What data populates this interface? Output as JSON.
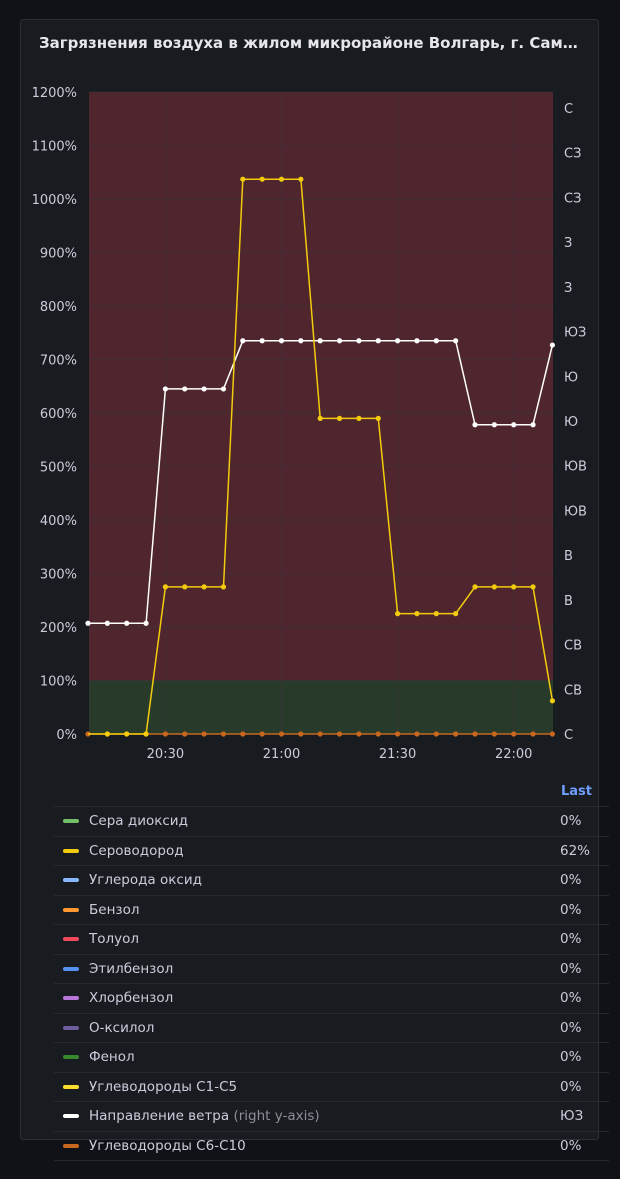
{
  "panel": {
    "title": "Загрязнения воздуха в жилом микрорайоне Волгарь, г. Самар...",
    "legend_header": "Last"
  },
  "colors": {
    "background": "#111217",
    "panel": "#181b1f",
    "threshold_red": "#4f262d",
    "threshold_green": "#283a2a",
    "grid": "#3a3540"
  },
  "chart_data": {
    "type": "line",
    "title": "Загрязнения воздуха в жилом микрорайоне Волгарь, г. Самар...",
    "x_ticks": [
      "20:30",
      "21:00",
      "21:30",
      "22:00"
    ],
    "x": [
      "20:10",
      "20:15",
      "20:20",
      "20:25",
      "20:30",
      "20:35",
      "20:40",
      "20:45",
      "20:50",
      "20:55",
      "21:00",
      "21:05",
      "21:10",
      "21:15",
      "21:20",
      "21:25",
      "21:30",
      "21:35",
      "21:40",
      "21:45",
      "21:50",
      "21:55",
      "22:00",
      "22:05",
      "22:10"
    ],
    "y_ticks": [
      "0%",
      "100%",
      "200%",
      "300%",
      "400%",
      "500%",
      "600%",
      "700%",
      "800%",
      "900%",
      "1000%",
      "1100%",
      "1200%"
    ],
    "ylim": [
      0,
      1200
    ],
    "y2_ticks": [
      "С",
      "СВ",
      "СВ",
      "В",
      "В",
      "ЮВ",
      "ЮВ",
      "Ю",
      "Ю",
      "ЮЗ",
      "З",
      "З",
      "СЗ",
      "СЗ",
      "С"
    ],
    "thresholds": [
      {
        "from": 0,
        "to": 100,
        "color": "green"
      },
      {
        "from": 100,
        "to": 1200,
        "color": "red"
      }
    ],
    "grid": true,
    "legend_placement": "bottom",
    "series": [
      {
        "name": "Сероводород",
        "color": "#f2cc0c",
        "axis": "left",
        "values": [
          0,
          0,
          0,
          0,
          275,
          275,
          275,
          275,
          1037,
          1037,
          1037,
          1037,
          590,
          590,
          590,
          590,
          225,
          225,
          225,
          225,
          275,
          275,
          275,
          275,
          62
        ]
      },
      {
        "name": "Направление ветра",
        "color": "#ffffff",
        "axis": "right",
        "values": [
          207,
          207,
          207,
          207,
          645,
          645,
          645,
          645,
          735,
          735,
          735,
          735,
          735,
          735,
          735,
          735,
          735,
          735,
          735,
          735,
          578,
          578,
          578,
          578,
          727
        ]
      },
      {
        "name": "Углеводороды С6-С10",
        "color": "#c8671e",
        "axis": "left",
        "values": [
          0,
          0,
          0,
          0,
          0,
          0,
          0,
          0,
          0,
          0,
          0,
          0,
          0,
          0,
          0,
          0,
          0,
          0,
          0,
          0,
          0,
          0,
          0,
          0,
          0
        ]
      }
    ]
  },
  "legend": [
    {
      "name": "Сера диоксид",
      "suffix": "",
      "color": "#73bf69",
      "last": "0%"
    },
    {
      "name": "Сероводород",
      "suffix": "",
      "color": "#f2cc0c",
      "last": "62%"
    },
    {
      "name": "Углерода оксид",
      "suffix": "",
      "color": "#8ab8ff",
      "last": "0%"
    },
    {
      "name": "Бензол",
      "suffix": "",
      "color": "#ff9830",
      "last": "0%"
    },
    {
      "name": "Толуол",
      "suffix": "",
      "color": "#f2495c",
      "last": "0%"
    },
    {
      "name": "Этилбензол",
      "suffix": "",
      "color": "#5794f2",
      "last": "0%"
    },
    {
      "name": "Хлорбензол",
      "suffix": "",
      "color": "#b877d9",
      "last": "0%"
    },
    {
      "name": "О-ксилол",
      "suffix": "",
      "color": "#705da0",
      "last": "0%"
    },
    {
      "name": "Фенол",
      "suffix": "",
      "color": "#37872d",
      "last": "0%"
    },
    {
      "name": "Углеводороды С1-С5",
      "suffix": "",
      "color": "#fade2a",
      "last": "0%"
    },
    {
      "name": "Направление ветра",
      "suffix": "(right y-axis)",
      "color": "#ffffff",
      "last": "ЮЗ"
    },
    {
      "name": "Углеводороды С6-С10",
      "suffix": "",
      "color": "#c8671e",
      "last": "0%"
    }
  ]
}
